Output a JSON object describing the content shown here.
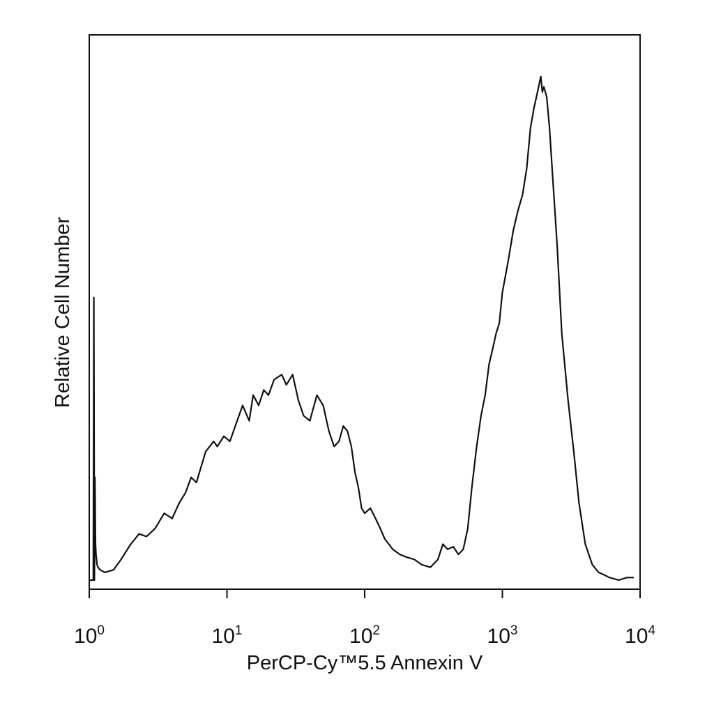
{
  "chart_data": {
    "type": "line",
    "title": "",
    "xlabel": "PerCP-Cy™5.5 Annexin V",
    "ylabel": "Relative Cell Number",
    "x_scale": "log",
    "xlim": [
      1,
      10000
    ],
    "ylim": [
      0,
      1
    ],
    "grid": false,
    "legend": "none",
    "x_ticks": [
      {
        "base": "10",
        "exp": "0",
        "value": 1
      },
      {
        "base": "10",
        "exp": "1",
        "value": 10
      },
      {
        "base": "10",
        "exp": "2",
        "value": 100
      },
      {
        "base": "10",
        "exp": "3",
        "value": 1000
      },
      {
        "base": "10",
        "exp": "4",
        "value": 10000
      }
    ],
    "line_color": "#111111",
    "series": [
      {
        "x": [
          1.0,
          1.05,
          1.07,
          1.08,
          1.09,
          1.1,
          1.11,
          1.12,
          1.13,
          1.14,
          1.16,
          1.2,
          1.3,
          1.5,
          1.7,
          2.0,
          2.3,
          2.6,
          3.0,
          3.5,
          4.0,
          4.5,
          5.0,
          5.5,
          6.0,
          7.0,
          8.0,
          8.5,
          9.5,
          10.5,
          11.5,
          13,
          14.5,
          15.5,
          17,
          18.5,
          20,
          22,
          25,
          27,
          30,
          33,
          36,
          40,
          45,
          50,
          55,
          60,
          65,
          70,
          75,
          80,
          85,
          90,
          95,
          100,
          110,
          120,
          130,
          140,
          160,
          180,
          200,
          230,
          260,
          300,
          340,
          370,
          400,
          440,
          480,
          520,
          560,
          600,
          650,
          700,
          750,
          800,
          850,
          900,
          950,
          1000,
          1100,
          1200,
          1300,
          1400,
          1500,
          1600,
          1700,
          1800,
          1900,
          1950,
          2000,
          2100,
          2200,
          2300,
          2500,
          2700,
          3000,
          3300,
          3600,
          4000,
          4500,
          5000,
          5500,
          6000,
          7000,
          8000,
          9000
        ],
        "values": [
          0.0,
          0.0,
          0.0,
          0.55,
          0.0,
          0.2,
          0.07,
          0.05,
          0.04,
          0.03,
          0.025,
          0.02,
          0.015,
          0.02,
          0.04,
          0.07,
          0.09,
          0.085,
          0.1,
          0.13,
          0.12,
          0.15,
          0.17,
          0.2,
          0.19,
          0.25,
          0.27,
          0.26,
          0.28,
          0.27,
          0.3,
          0.34,
          0.31,
          0.36,
          0.34,
          0.37,
          0.36,
          0.39,
          0.4,
          0.38,
          0.4,
          0.35,
          0.32,
          0.31,
          0.36,
          0.34,
          0.29,
          0.26,
          0.27,
          0.3,
          0.29,
          0.26,
          0.21,
          0.18,
          0.14,
          0.13,
          0.14,
          0.12,
          0.1,
          0.08,
          0.06,
          0.05,
          0.045,
          0.04,
          0.03,
          0.025,
          0.04,
          0.07,
          0.06,
          0.065,
          0.05,
          0.06,
          0.1,
          0.18,
          0.26,
          0.32,
          0.36,
          0.42,
          0.45,
          0.48,
          0.5,
          0.56,
          0.62,
          0.68,
          0.72,
          0.75,
          0.8,
          0.88,
          0.92,
          0.95,
          0.98,
          0.95,
          0.96,
          0.94,
          0.88,
          0.8,
          0.65,
          0.48,
          0.35,
          0.25,
          0.15,
          0.07,
          0.03,
          0.015,
          0.01,
          0.005,
          0.0,
          0.005,
          0.005
        ]
      }
    ]
  }
}
